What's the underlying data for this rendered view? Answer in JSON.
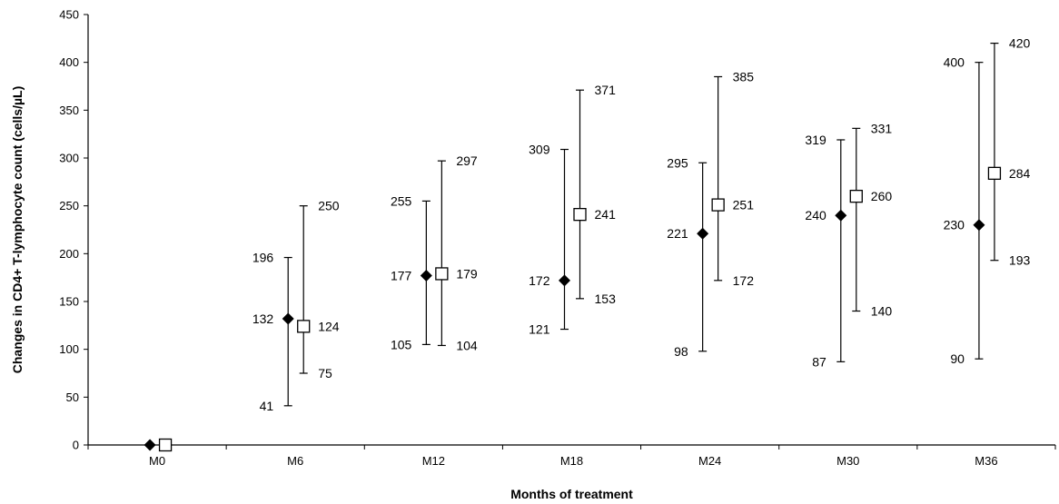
{
  "chart_data": {
    "type": "scatter",
    "title": "",
    "xlabel": "Months of treatment",
    "ylabel": "Changes in CD4+ T-lymphocyte count (cells/µL)",
    "ylim": [
      0,
      450
    ],
    "yticks": [
      "0",
      "50",
      "100",
      "150",
      "200",
      "250",
      "300",
      "350",
      "400",
      "450"
    ],
    "categories": [
      "M0",
      "M6",
      "M12",
      "M18",
      "M24",
      "M30",
      "M36"
    ],
    "grid": false,
    "legend": "none",
    "series": [
      {
        "marker": "diamond-filled",
        "color": "#000000",
        "values": [
          0,
          132,
          177,
          172,
          221,
          240,
          230
        ],
        "lower": [
          null,
          41,
          105,
          121,
          98,
          87,
          90
        ],
        "upper": [
          null,
          196,
          255,
          309,
          295,
          319,
          400
        ],
        "value_labels": [
          "",
          "132",
          "177",
          "172",
          "221",
          "240",
          "230"
        ],
        "lower_labels": [
          "",
          "41",
          "105",
          "121",
          "98",
          "87",
          "90"
        ],
        "upper_labels": [
          "",
          "196",
          "255",
          "309",
          "295",
          "319",
          "400"
        ]
      },
      {
        "marker": "square-open",
        "color": "#000000",
        "values": [
          0,
          124,
          179,
          241,
          251,
          260,
          284
        ],
        "lower": [
          null,
          75,
          104,
          153,
          172,
          140,
          193
        ],
        "upper": [
          null,
          250,
          297,
          371,
          385,
          331,
          420
        ],
        "value_labels": [
          "",
          "124",
          "179",
          "241",
          "251",
          "260",
          "284"
        ],
        "lower_labels": [
          "",
          "75",
          "104",
          "153",
          "172",
          "140",
          "193"
        ],
        "upper_labels": [
          "",
          "250",
          "297",
          "371",
          "385",
          "331",
          "420"
        ]
      }
    ]
  }
}
